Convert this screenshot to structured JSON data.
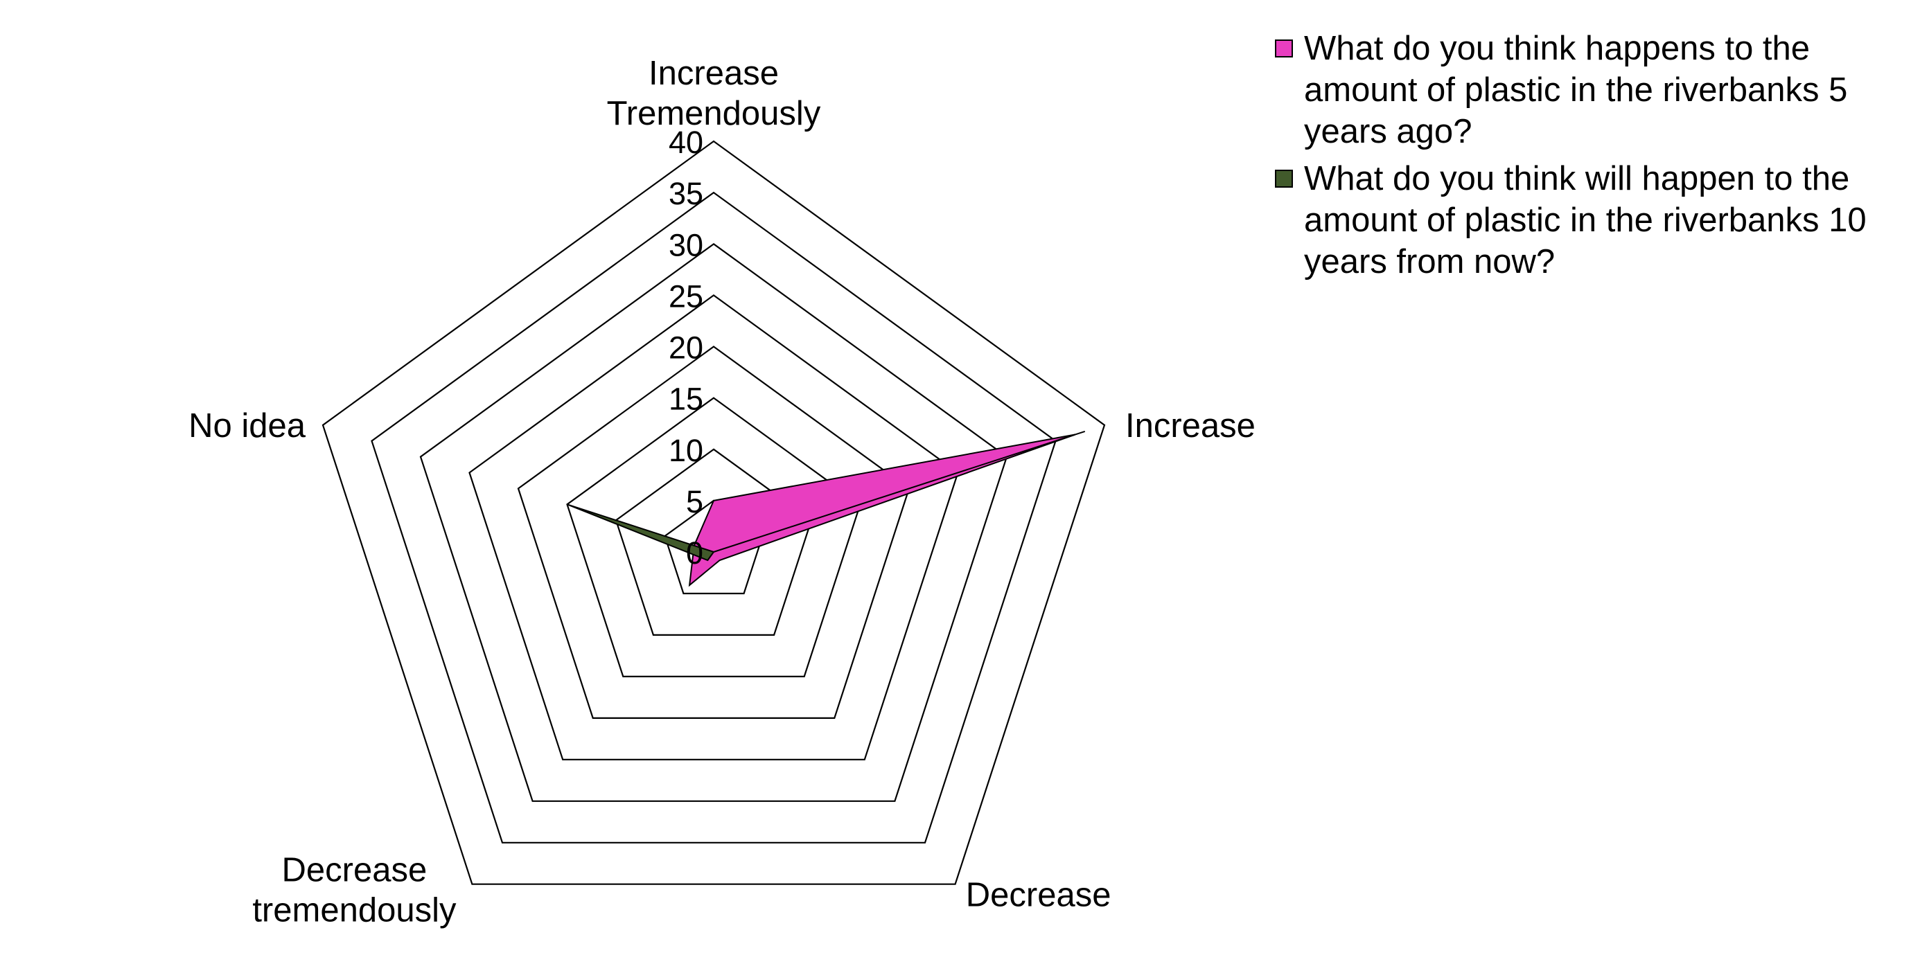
{
  "chart_data": {
    "type": "radar",
    "axes": [
      "Increase\nTremendously",
      "Increase",
      "Decrease",
      "Decrease\ntremendously",
      "No idea"
    ],
    "rlim": [
      0,
      40
    ],
    "ticks": [
      "0",
      "5",
      "10",
      "15",
      "20",
      "25",
      "30",
      "35",
      "40"
    ],
    "series": [
      {
        "name": "What do you think happens to the amount of plastic in the riverbanks 5 years ago?",
        "color": "#e83ec0",
        "values": [
          5,
          37,
          1,
          4,
          2
        ]
      },
      {
        "name": "What do you think will happen to the amount of plastic in the riverbanks 10 years from now?",
        "color": "#415a2b",
        "values": [
          0,
          38,
          0,
          1,
          15
        ]
      }
    ],
    "legend": "right"
  }
}
